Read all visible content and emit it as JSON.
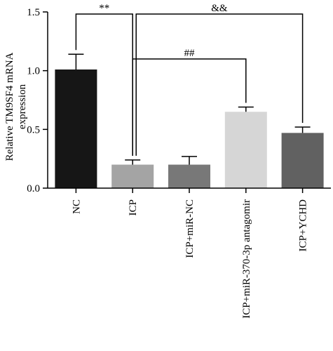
{
  "chart_data": {
    "type": "bar",
    "title": "",
    "xlabel": "",
    "ylabel_lines": [
      "Relative TM9SF4 mRNA",
      "expression"
    ],
    "ylim": [
      0,
      1.5
    ],
    "yticks": [
      "0.0",
      "0.5",
      "1.0",
      "1.5"
    ],
    "categories": [
      "NC",
      "ICP",
      "ICP+miR-NC",
      "ICP+miR-370-3p antagomir",
      "ICP+YCHD"
    ],
    "values": [
      1.01,
      0.2,
      0.2,
      0.65,
      0.47
    ],
    "errors": [
      0.13,
      0.04,
      0.07,
      0.04,
      0.05
    ],
    "colors": [
      "#161616",
      "#a4a4a4",
      "#787878",
      "#d6d6d6",
      "#616161"
    ],
    "significance": [
      {
        "label": "**",
        "from": "NC",
        "to": "ICP"
      },
      {
        "label": "&&",
        "from": "ICP",
        "to": "ICP+YCHD"
      },
      {
        "label": "##",
        "from": "ICP",
        "to": "ICP+miR-370-3p antagomir"
      }
    ],
    "grid": false,
    "legend": "none"
  }
}
